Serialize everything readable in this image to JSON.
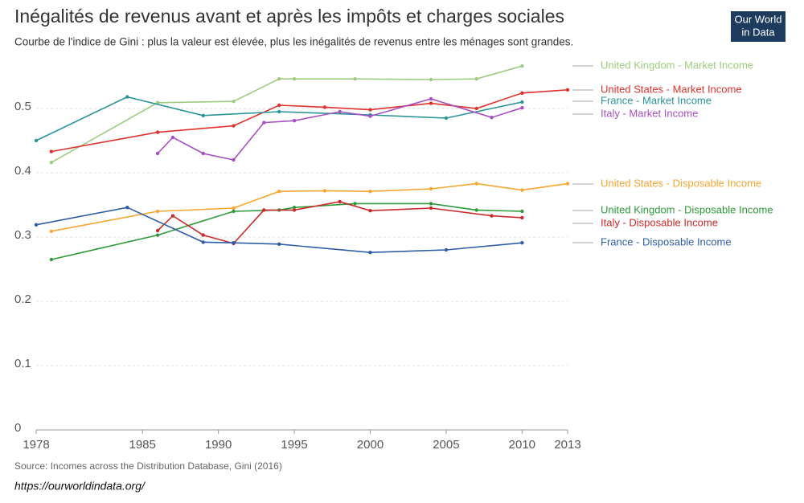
{
  "chart_data": {
    "type": "line",
    "title": "Inégalités de revenus avant et après les impôts et charges sociales",
    "subtitle": "Courbe de l'indice de Gini : plus la valeur est élevée, plus les inégalités de revenus entre les ménages sont grandes.",
    "xlim": [
      1978,
      2013
    ],
    "xticks": [
      1978,
      1985,
      1990,
      1995,
      2000,
      2005,
      2010,
      2013
    ],
    "ylim": [
      0,
      0.57
    ],
    "yticks": [
      0,
      0.1,
      0.2,
      0.3,
      0.4,
      0.5
    ],
    "grid": true,
    "series": [
      {
        "name": "United Kingdom - Market Income",
        "color": "#9dcc7e",
        "x": [
          1979,
          1986,
          1991,
          1994,
          1995,
          1999,
          2004,
          2007,
          2010
        ],
        "values": [
          0.416,
          0.509,
          0.511,
          0.546,
          0.546,
          0.546,
          0.545,
          0.546,
          0.566
        ]
      },
      {
        "name": "United States - Market Income",
        "color": "#e0312b",
        "x": [
          1979,
          1986,
          1991,
          1994,
          1997,
          2000,
          2004,
          2007,
          2010,
          2013
        ],
        "values": [
          0.433,
          0.463,
          0.473,
          0.505,
          0.502,
          0.498,
          0.508,
          0.5,
          0.524,
          0.529
        ]
      },
      {
        "name": "France - Market Income",
        "color": "#2a9496",
        "x": [
          1978,
          1984,
          1989,
          1994,
          2000,
          2005,
          2010
        ],
        "values": [
          0.45,
          0.518,
          0.489,
          0.495,
          0.49,
          0.485,
          0.51
        ]
      },
      {
        "name": "Italy - Market Income",
        "color": "#a64fc4",
        "x": [
          1986,
          1987,
          1989,
          1991,
          1993,
          1995,
          1998,
          2000,
          2004,
          2008,
          2010
        ],
        "values": [
          0.43,
          0.455,
          0.43,
          0.42,
          0.478,
          0.481,
          0.495,
          0.488,
          0.515,
          0.486,
          0.501
        ]
      },
      {
        "name": "United States - Disposable Income",
        "color": "#f6a631",
        "x": [
          1979,
          1986,
          1991,
          1994,
          1997,
          2000,
          2004,
          2007,
          2010,
          2013
        ],
        "values": [
          0.309,
          0.34,
          0.345,
          0.371,
          0.372,
          0.371,
          0.375,
          0.383,
          0.373,
          0.383
        ]
      },
      {
        "name": "United Kingdom - Disposable Income",
        "color": "#2e9a3a",
        "x": [
          1979,
          1986,
          1991,
          1994,
          1995,
          1999,
          2004,
          2007,
          2010
        ],
        "values": [
          0.265,
          0.303,
          0.34,
          0.342,
          0.346,
          0.352,
          0.352,
          0.342,
          0.34
        ]
      },
      {
        "name": "Italy - Disposable Income",
        "color": "#cc2a2a",
        "x": [
          1986,
          1987,
          1989,
          1991,
          1993,
          1995,
          1998,
          2000,
          2004,
          2008,
          2010
        ],
        "values": [
          0.31,
          0.333,
          0.303,
          0.29,
          0.342,
          0.342,
          0.355,
          0.341,
          0.345,
          0.333,
          0.33
        ]
      },
      {
        "name": "France - Disposable Income",
        "color": "#2f5ea8",
        "x": [
          1978,
          1984,
          1989,
          1991,
          1994,
          2000,
          2005,
          2010
        ],
        "values": [
          0.319,
          0.346,
          0.292,
          0.291,
          0.289,
          0.276,
          0.28,
          0.291
        ]
      }
    ]
  },
  "logo": [
    "Our World",
    "in Data"
  ],
  "footer": {
    "source": "Source: Incomes across the Distribution Database, Gini (2016)",
    "url": "https://ourworldindata.org/"
  }
}
